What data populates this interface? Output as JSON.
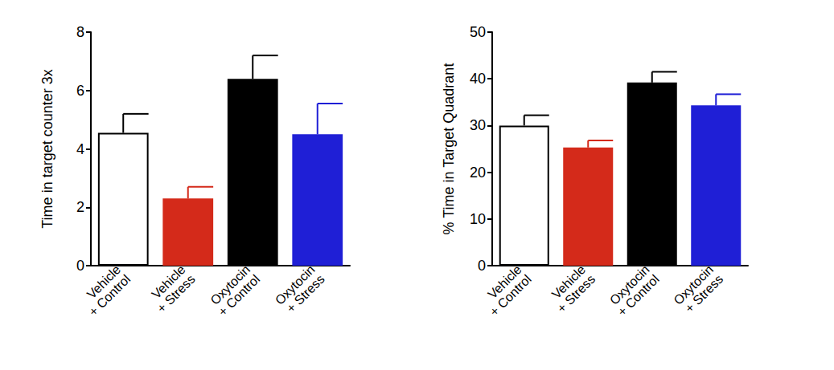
{
  "chart_data": [
    {
      "type": "bar",
      "y_label": "Time in target counter 3x",
      "categories": [
        "Vehicle\n+ Control",
        "Vehicle\n+ Stress",
        "Oxytocin\n+ Control",
        "Oxytocin\n+ Stress"
      ],
      "values": [
        4.55,
        2.3,
        6.4,
        4.5
      ],
      "errors": [
        0.65,
        0.4,
        0.8,
        1.05
      ],
      "colors": [
        "#ffffff",
        "#d42a1a",
        "#000000",
        "#1f1fd6"
      ],
      "ylim": [
        0,
        8
      ],
      "yticks": [
        0,
        2,
        4,
        6,
        8
      ],
      "grid": false
    },
    {
      "type": "bar",
      "y_label": "% Time in Target Quadrant",
      "categories": [
        "Vehicle\n+ Control",
        "Vehicle\n+ Stress",
        "Oxytocin\n+ Control",
        "Oxytocin\n+ Stress"
      ],
      "values": [
        30,
        25.3,
        39.2,
        34.3
      ],
      "errors": [
        2.2,
        1.5,
        2.3,
        2.4
      ],
      "colors": [
        "#ffffff",
        "#d42a1a",
        "#000000",
        "#1f1fd6"
      ],
      "ylim": [
        0,
        50
      ],
      "yticks": [
        0,
        10,
        20,
        30,
        40,
        50
      ],
      "grid": false
    }
  ]
}
